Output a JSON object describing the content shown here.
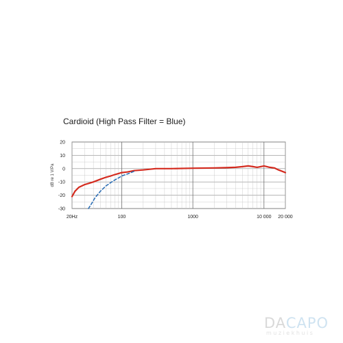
{
  "chart_data": {
    "type": "line",
    "title": "Cardioid (High Pass Filter = Blue)",
    "xlabel": "",
    "ylabel": "dB re 1 V/Pa",
    "x_scale": "log",
    "xlim": [
      20,
      20000
    ],
    "ylim": [
      -30,
      20
    ],
    "y_ticks": [
      20,
      10,
      0,
      -10,
      -20,
      -30
    ],
    "y_tick_labels": [
      "20",
      "10",
      "0",
      "-10",
      "-20",
      "-30"
    ],
    "x_ticks": [
      20,
      100,
      1000,
      10000,
      20000
    ],
    "x_tick_labels": [
      "20Hz",
      "100",
      "1000",
      "10 000",
      "20 000"
    ],
    "grid": true,
    "series": [
      {
        "color": "#d42a1e",
        "style": "solid",
        "x": [
          20,
          22,
          25,
          30,
          35,
          40,
          50,
          60,
          70,
          80,
          100,
          120,
          150,
          200,
          300,
          500,
          1000,
          2000,
          3000,
          4000,
          5000,
          6000,
          7000,
          8000,
          9000,
          10000,
          11000,
          12000,
          14000,
          16000,
          18000,
          20000
        ],
        "y": [
          -21,
          -17,
          -14,
          -12,
          -11,
          -10,
          -8,
          -6.5,
          -5.5,
          -4.5,
          -3,
          -2.5,
          -1.5,
          -1,
          0,
          0,
          0.3,
          0.5,
          0.7,
          1,
          1.5,
          2,
          1.5,
          1,
          1.5,
          2,
          1.5,
          1,
          0.5,
          -1,
          -2,
          -3
        ]
      },
      {
        "color": "#2d6fb5",
        "style": "dashed",
        "x": [
          34,
          38,
          42,
          50,
          60,
          70,
          80,
          90,
          100,
          120,
          150
        ],
        "y": [
          -30,
          -26,
          -22,
          -17,
          -13,
          -10.5,
          -8.5,
          -7,
          -5.5,
          -4,
          -2
        ]
      }
    ]
  },
  "logo": {
    "main_part1": "DA",
    "main_part2": "CAPO",
    "sub": "muziekhuis"
  }
}
